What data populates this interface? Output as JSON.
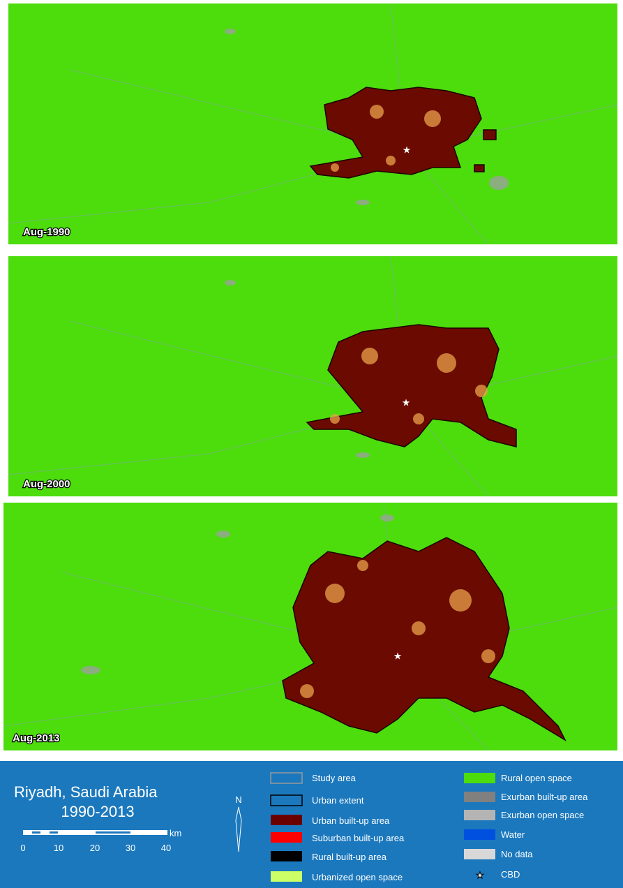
{
  "panels": [
    {
      "label": "Aug-1990"
    },
    {
      "label": "Aug-2000"
    },
    {
      "label": "Aug-2013"
    }
  ],
  "legend": {
    "title": "Riyadh, Saudi Arabia",
    "subtitle": "1990-2013",
    "north": "N",
    "scale": {
      "unit": "km",
      "labels": [
        0,
        10,
        20,
        30,
        40
      ]
    },
    "items": [
      "Study area",
      "Urban extent",
      "Urban built-up area",
      "Suburban built-up area",
      "Rural built-up area",
      "Urbanized open space",
      "Rural open space",
      "Exurban built-up area",
      "Exurban open space",
      "Water",
      "No data",
      "CBD"
    ]
  }
}
